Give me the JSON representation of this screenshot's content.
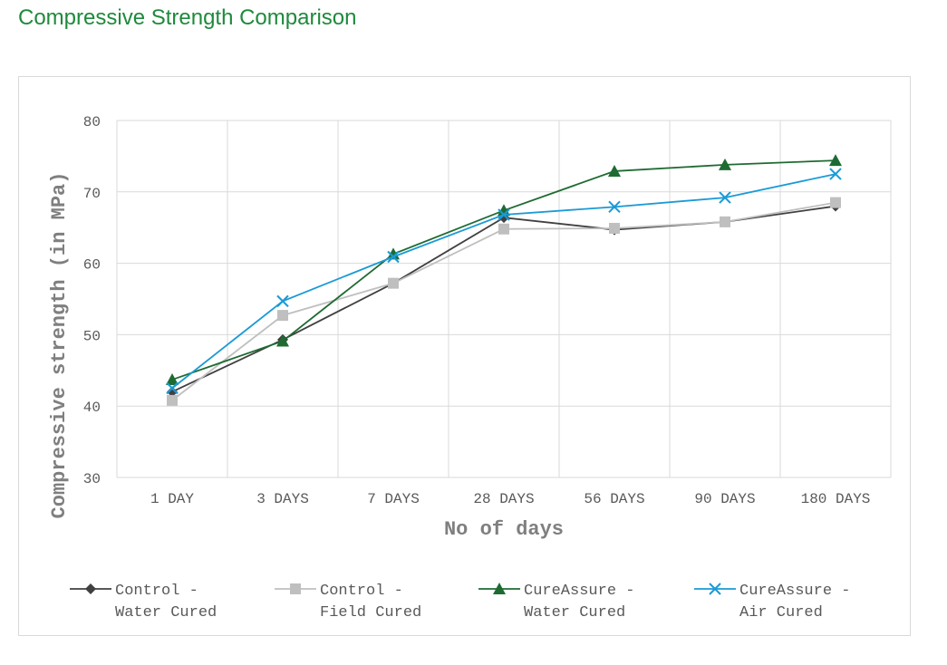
{
  "page": {
    "title": "Compressive Strength Comparison"
  },
  "colors": {
    "title": "#1e8a3c",
    "grid": "#d9d9d9",
    "text": "#595959",
    "axis_title": "#7f7f7f"
  },
  "chart_data": {
    "type": "line",
    "title": "",
    "xlabel": "No of days",
    "ylabel": "Compressive strength (in MPa)",
    "ylim": [
      30,
      80
    ],
    "ytick_step": 10,
    "grid": true,
    "legend_position": "bottom",
    "categories": [
      "1 DAY",
      "3 DAYS",
      "7 DAYS",
      "28 DAYS",
      "56 DAYS",
      "90 DAYS",
      "180 DAYS"
    ],
    "series": [
      {
        "name": "Control - Water Cured",
        "legend_lines": [
          "Control -",
          "Water Cured"
        ],
        "color": "#404040",
        "marker": "diamond",
        "values": [
          42.0,
          49.3,
          57.2,
          66.4,
          64.7,
          65.8,
          68.0
        ]
      },
      {
        "name": "Control - Field Cured",
        "legend_lines": [
          "Control -",
          "Field Cured"
        ],
        "color": "#bfbfbf",
        "marker": "square",
        "values": [
          40.8,
          52.7,
          57.2,
          64.8,
          64.9,
          65.8,
          68.5
        ]
      },
      {
        "name": "CureAssure - Water Cured",
        "legend_lines": [
          "CureAssure -",
          "Water Cured"
        ],
        "color": "#1e6b32",
        "marker": "triangle",
        "values": [
          43.7,
          49.1,
          61.3,
          67.4,
          72.9,
          73.8,
          74.4
        ]
      },
      {
        "name": "CureAssure - Air Cured",
        "legend_lines": [
          "CureAssure -",
          "Air Cured"
        ],
        "color": "#1a9ad6",
        "marker": "x",
        "values": [
          42.5,
          54.7,
          60.9,
          66.8,
          67.9,
          69.2,
          72.5
        ]
      }
    ]
  }
}
